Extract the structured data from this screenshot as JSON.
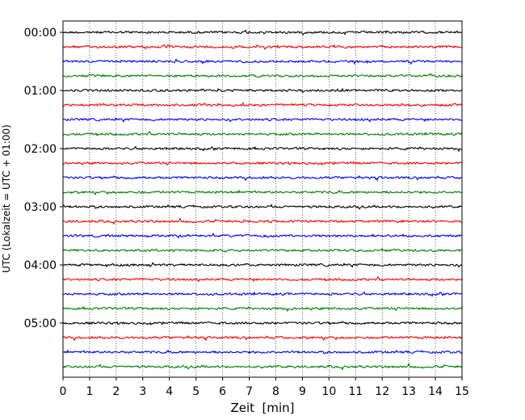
{
  "chart_data": {
    "type": "line",
    "title": "",
    "xlabel": "Zeit  [min]",
    "ylabel": "UTC (Lokalzeit = UTC + 01:00)",
    "xlim": [
      0,
      15
    ],
    "x_ticks": [
      "0",
      "1",
      "2",
      "3",
      "4",
      "5",
      "6",
      "7",
      "8",
      "9",
      "10",
      "11",
      "12",
      "13",
      "14",
      "15"
    ],
    "y_ticks": [
      "00:00",
      "01:00",
      "02:00",
      "03:00",
      "04:00",
      "05:00"
    ],
    "grid": "vertical dotted",
    "series_colors": [
      "#000000",
      "#ff0000",
      "#0000ff",
      "#008000"
    ],
    "trace_count": 24,
    "trace_interval_minutes": 15,
    "first_trace_time": "00:00",
    "last_trace_time": "05:45"
  }
}
